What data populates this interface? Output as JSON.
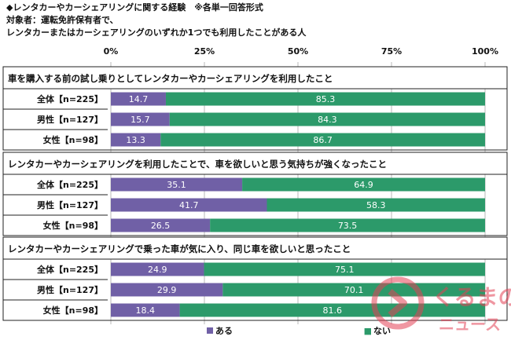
{
  "header": {
    "title": "◆レンタカーやカーシェアリングに関する経験　※各単一回答形式",
    "subject": "対象者：運転免許保有者で、",
    "subject2": "レンタカーまたはカーシェアリングのいずれか1つでも利用したことがある人"
  },
  "chart_data": {
    "type": "bar",
    "stacked": true,
    "orientation": "horizontal",
    "xlim": [
      0,
      100
    ],
    "x_ticks": [
      "0%",
      "25%",
      "50%",
      "75%",
      "100%"
    ],
    "legend_position": "bottom",
    "series_names": [
      "ある",
      "ない"
    ],
    "colors": {
      "aru": "#7060a6",
      "nai": "#2c9a6a"
    },
    "groups": [
      {
        "title": "車を購入する前の試し乗りとしてレンタカーやカーシェアリングを利用したこと",
        "rows": [
          {
            "label": "全体【n=225】",
            "aru": 14.7,
            "nai": 85.3
          },
          {
            "label": "男性【n=127】",
            "aru": 15.7,
            "nai": 84.3
          },
          {
            "label": "女性【n=98】",
            "aru": 13.3,
            "nai": 86.7
          }
        ]
      },
      {
        "title": "レンタカーやカーシェアリングを利用したことで、車を欲しいと思う気持ちが強くなったこと",
        "rows": [
          {
            "label": "全体【n=225】",
            "aru": 35.1,
            "nai": 64.9
          },
          {
            "label": "男性【n=127】",
            "aru": 41.7,
            "nai": 58.3
          },
          {
            "label": "女性【n=98】",
            "aru": 26.5,
            "nai": 73.5
          }
        ]
      },
      {
        "title": "レンタカーやカーシェアリングで乗った車が気に入り、同じ車を欲しいと思ったこと",
        "rows": [
          {
            "label": "全体【n=225】",
            "aru": 24.9,
            "nai": 75.1
          },
          {
            "label": "男性【n=127】",
            "aru": 29.9,
            "nai": 70.1
          },
          {
            "label": "女性【n=98】",
            "aru": 18.4,
            "nai": 81.6
          }
        ]
      }
    ]
  },
  "watermark": {
    "line1": "くるまの",
    "line2": "ニュース"
  }
}
